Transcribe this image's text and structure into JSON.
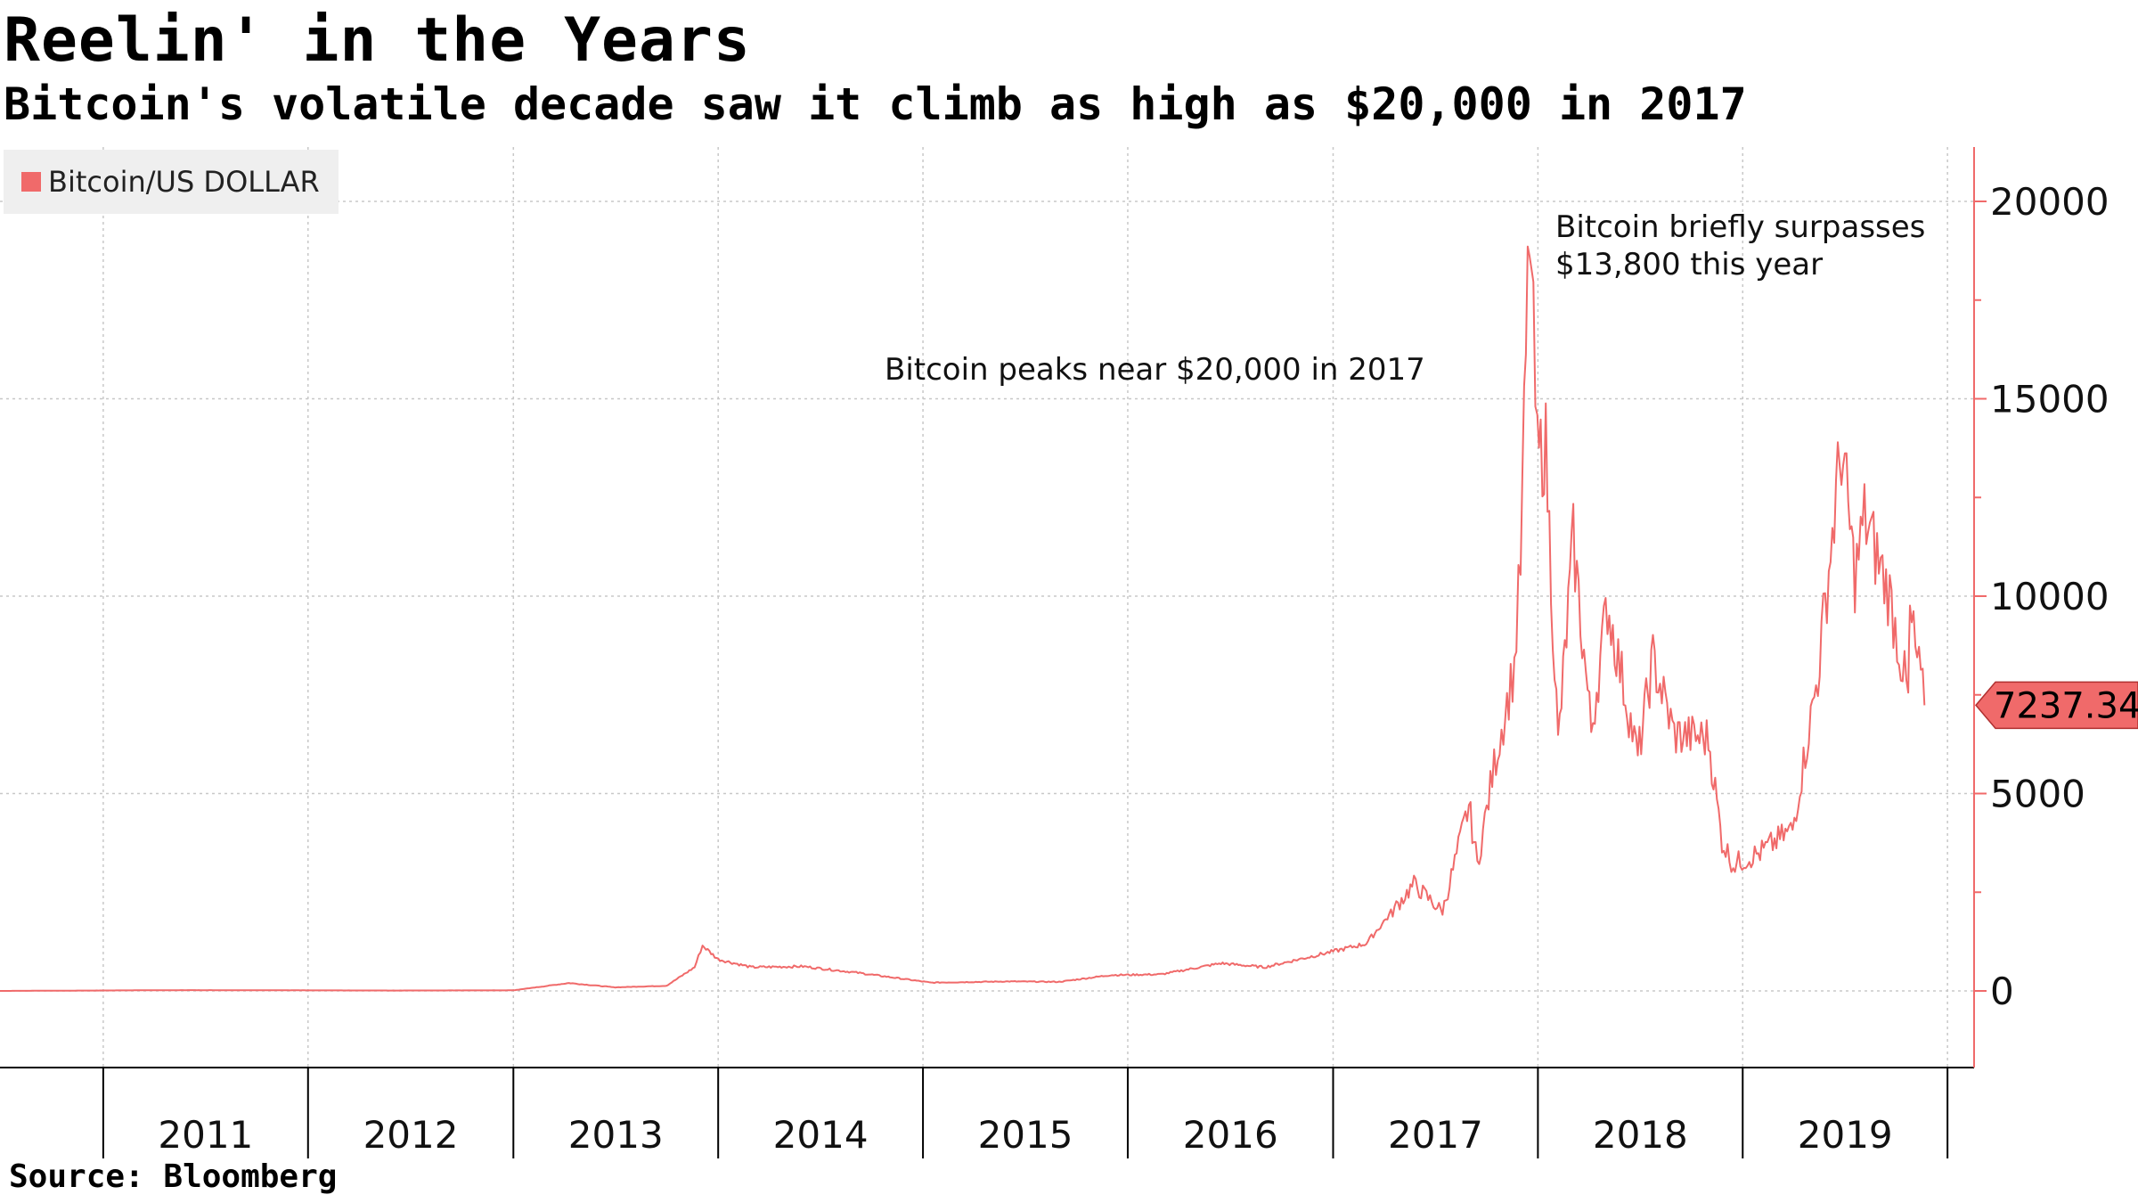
{
  "title": "Reelin' in the Years",
  "subtitle": "Bitcoin's volatile decade saw it climb as high as $20,000 in 2017",
  "source": "Source: Bloomberg",
  "colors": {
    "series": "#f06a6a",
    "grid": "#c8c8c8",
    "axis": "#000000"
  },
  "chart_data": {
    "type": "line",
    "title": "Reelin' in the Years",
    "subtitle": "Bitcoin's volatile decade saw it climb as high as $20,000 in 2017",
    "legend": {
      "position": "top-left",
      "entries": [
        "Bitcoin/US DOLLAR"
      ]
    },
    "grid": true,
    "x_axis": {
      "type": "date",
      "range": [
        "2010-07-01",
        "2019-11-30"
      ],
      "ticks": [
        "2011",
        "2012",
        "2013",
        "2014",
        "2015",
        "2016",
        "2017",
        "2018",
        "2019"
      ]
    },
    "y_axis": {
      "position": "right",
      "range": [
        -2000,
        21500
      ],
      "ticks": [
        0,
        5000,
        10000,
        15000,
        20000
      ],
      "tick_labels": [
        "0",
        "5000",
        "10000",
        "15000",
        "20000"
      ]
    },
    "series": [
      {
        "name": "Bitcoin/US DOLLAR",
        "last_value": "7237.34",
        "points": [
          [
            "2010-07-01",
            0
          ],
          [
            "2011-06-01",
            20
          ],
          [
            "2012-06-01",
            10
          ],
          [
            "2013-01-01",
            15
          ],
          [
            "2013-04-10",
            200
          ],
          [
            "2013-07-01",
            90
          ],
          [
            "2013-10-01",
            130
          ],
          [
            "2013-11-20",
            600
          ],
          [
            "2013-12-04",
            1150
          ],
          [
            "2014-01-01",
            800
          ],
          [
            "2014-03-01",
            600
          ],
          [
            "2014-06-01",
            620
          ],
          [
            "2014-09-01",
            470
          ],
          [
            "2015-01-15",
            210
          ],
          [
            "2015-06-01",
            240
          ],
          [
            "2015-09-01",
            230
          ],
          [
            "2015-12-01",
            400
          ],
          [
            "2016-03-01",
            420
          ],
          [
            "2016-06-15",
            700
          ],
          [
            "2016-09-01",
            600
          ],
          [
            "2017-01-01",
            1000
          ],
          [
            "2017-03-01",
            1200
          ],
          [
            "2017-05-25",
            2700
          ],
          [
            "2017-07-15",
            2000
          ],
          [
            "2017-08-31",
            4700
          ],
          [
            "2017-09-15",
            3200
          ],
          [
            "2017-10-15",
            5700
          ],
          [
            "2017-11-20",
            8200
          ],
          [
            "2017-12-01",
            10800
          ],
          [
            "2017-12-17",
            19500
          ],
          [
            "2017-12-31",
            13500
          ],
          [
            "2018-01-15",
            13800
          ],
          [
            "2018-02-06",
            6200
          ],
          [
            "2018-03-05",
            11400
          ],
          [
            "2018-04-06",
            6600
          ],
          [
            "2018-05-05",
            9800
          ],
          [
            "2018-06-28",
            5900
          ],
          [
            "2018-07-25",
            8400
          ],
          [
            "2018-09-01",
            6500
          ],
          [
            "2018-11-01",
            6400
          ],
          [
            "2018-11-25",
            3800
          ],
          [
            "2018-12-15",
            3200
          ],
          [
            "2019-02-01",
            3500
          ],
          [
            "2019-03-31",
            4100
          ],
          [
            "2019-05-15",
            8000
          ],
          [
            "2019-06-26",
            13800
          ],
          [
            "2019-07-20",
            10500
          ],
          [
            "2019-08-06",
            12000
          ],
          [
            "2019-09-20",
            10000
          ],
          [
            "2019-10-23",
            7400
          ],
          [
            "2019-10-26",
            9500
          ],
          [
            "2019-11-21",
            7237.34
          ]
        ]
      }
    ],
    "annotations": [
      {
        "text": "Bitcoin peaks near $20,000 in 2017"
      },
      {
        "text": "Bitcoin briefly surpasses",
        "text2": "$13,800 this year"
      }
    ]
  }
}
